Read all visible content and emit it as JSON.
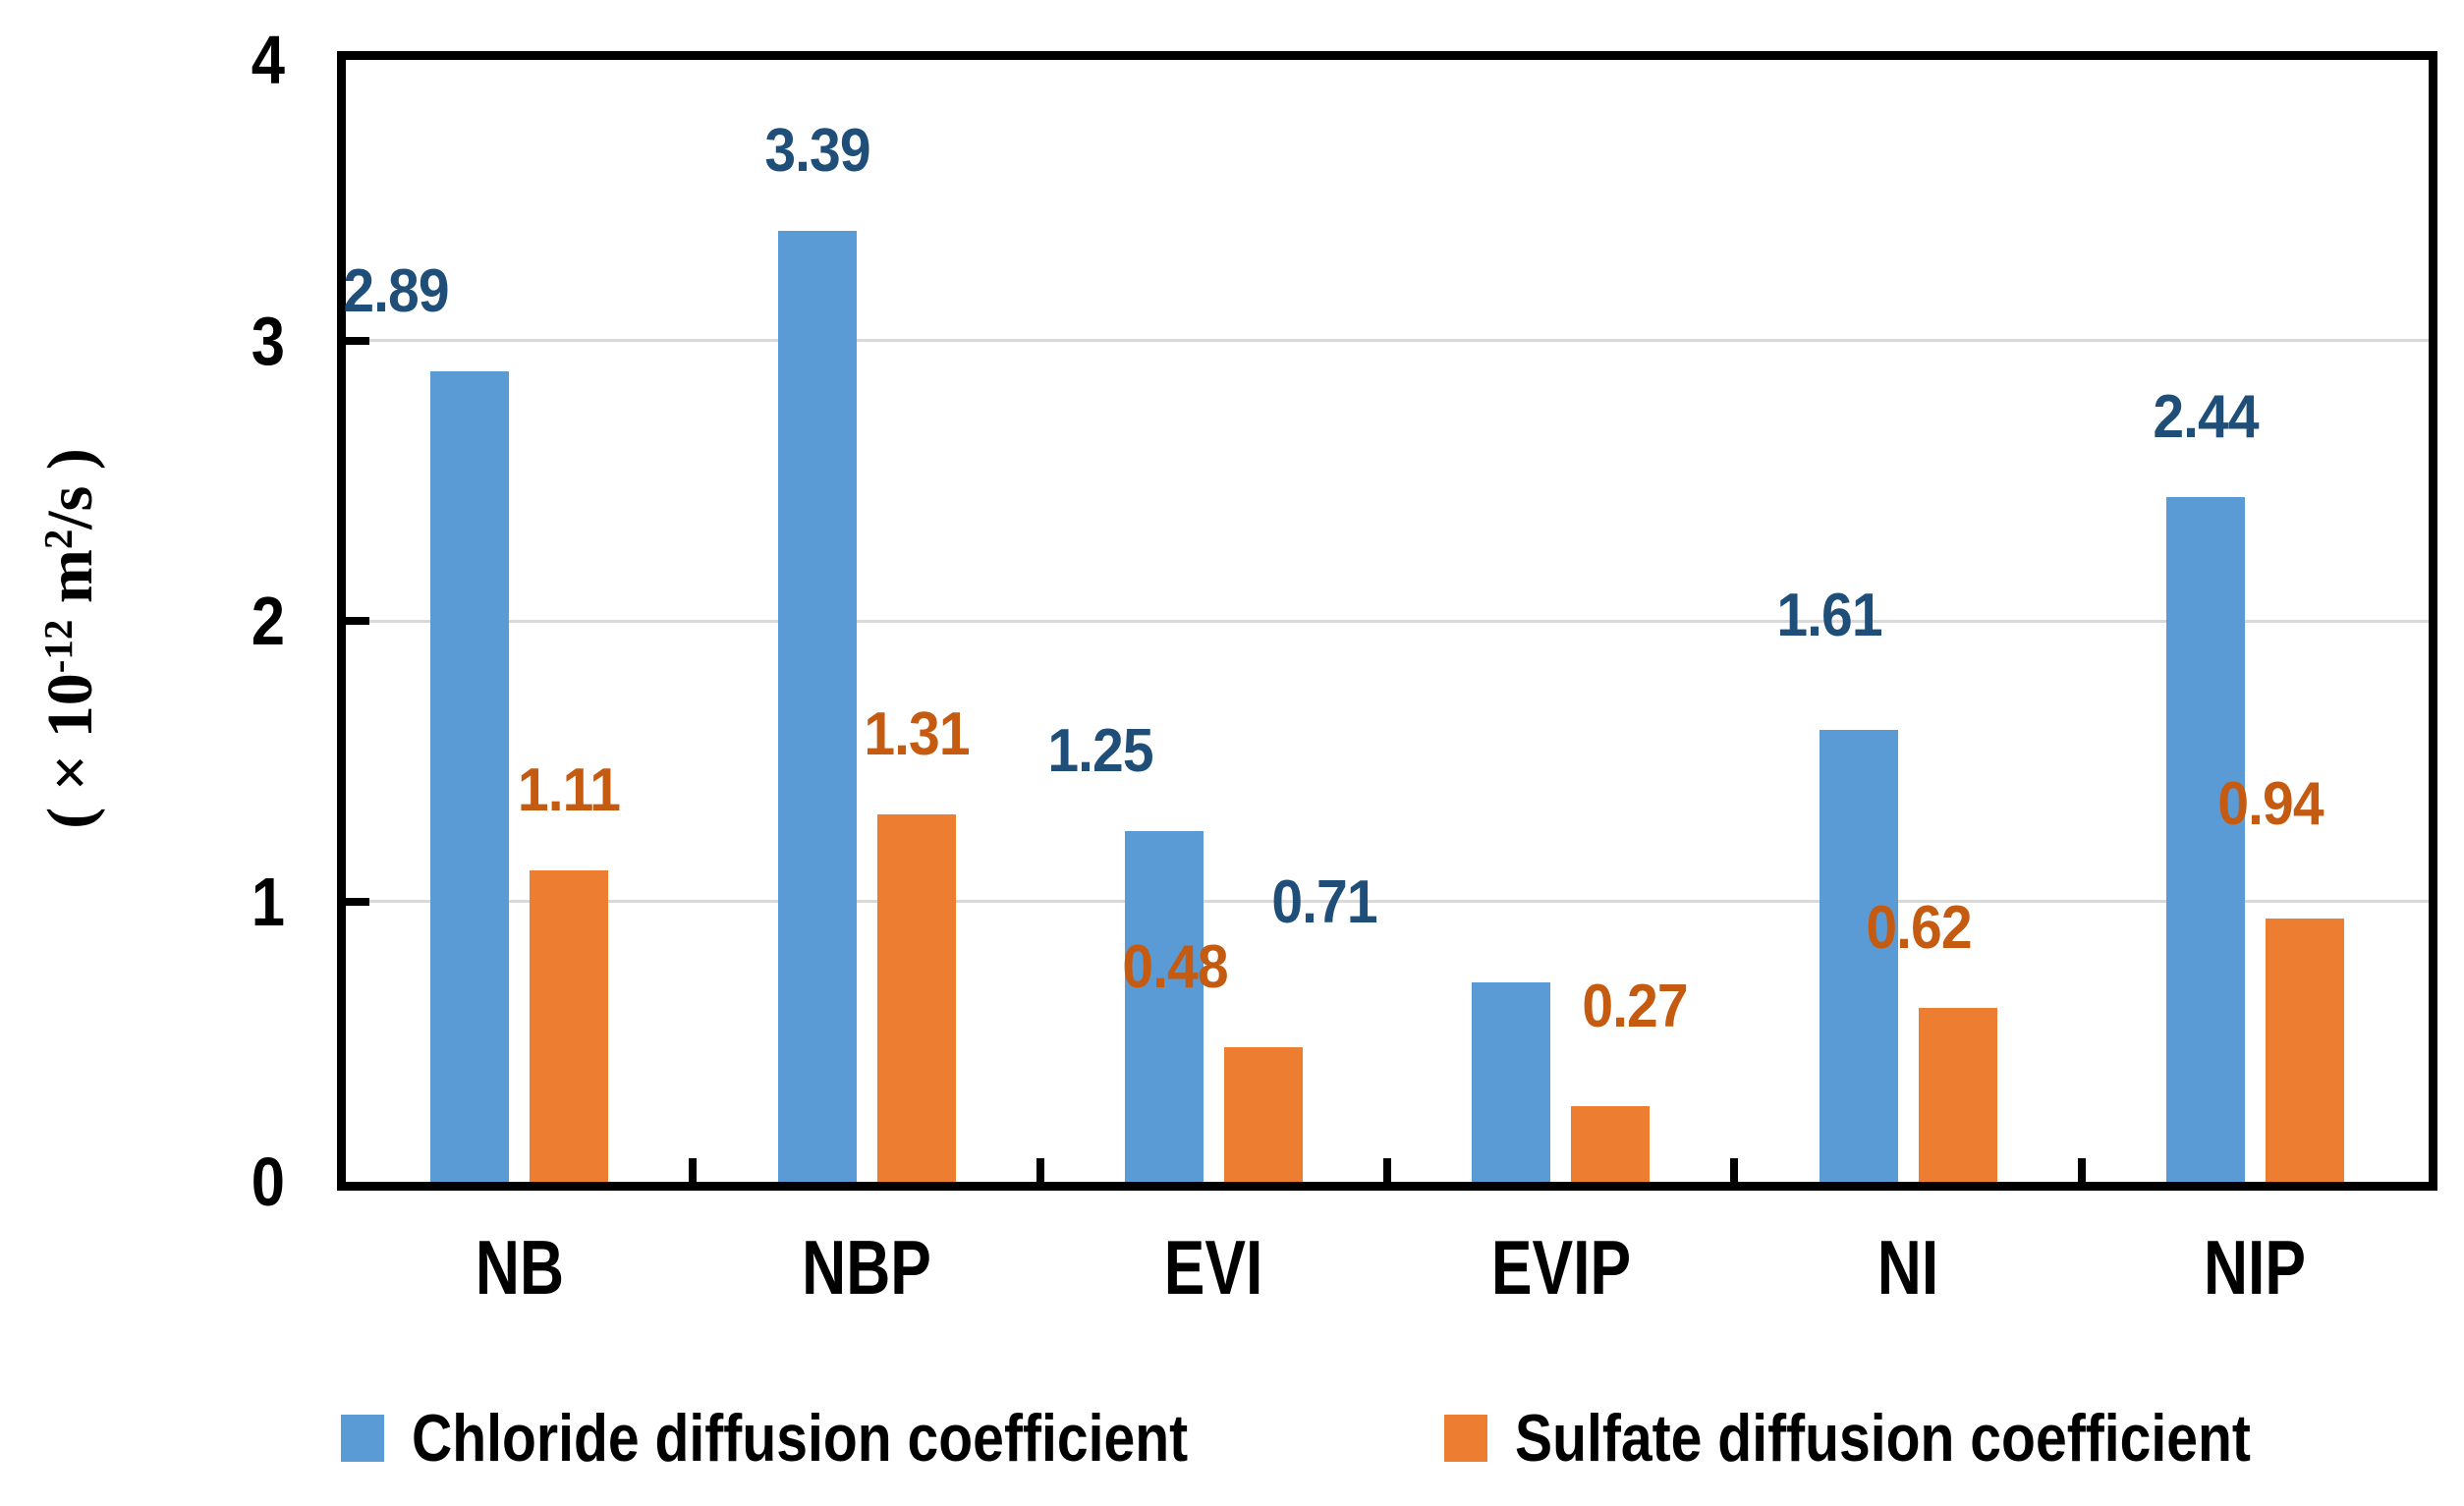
{
  "chart_data": {
    "type": "bar",
    "categories": [
      "NB",
      "NBP",
      "EVI",
      "EVIP",
      "NI",
      "NIP"
    ],
    "series": [
      {
        "name": "Chloride diffusion coefficient",
        "color": "#5B9BD5",
        "label_color": "#1F4E79",
        "values": [
          2.89,
          3.39,
          1.25,
          0.71,
          1.61,
          2.44
        ]
      },
      {
        "name": "Sulfate diffusion coefficient",
        "color": "#ED7D31",
        "label_color": "#C55A11",
        "values": [
          1.11,
          1.31,
          0.48,
          0.27,
          0.62,
          0.94
        ]
      }
    ],
    "title": "",
    "xlabel": "",
    "ylabel": "( × 10⁻¹² m²/s )",
    "ylim": [
      0,
      4
    ],
    "y_ticks": [
      0,
      1,
      2,
      3,
      4
    ],
    "grid": "horizontal",
    "gridline_color": "#D9D9D9",
    "axis_color": "#000000",
    "legend_position": "bottom",
    "data_labels_shown": true
  },
  "y_axis_title_parts": {
    "p1": "( × 10",
    "sup1": "-12",
    "p2": " m",
    "sup2": "2",
    "p3": "/s )"
  }
}
